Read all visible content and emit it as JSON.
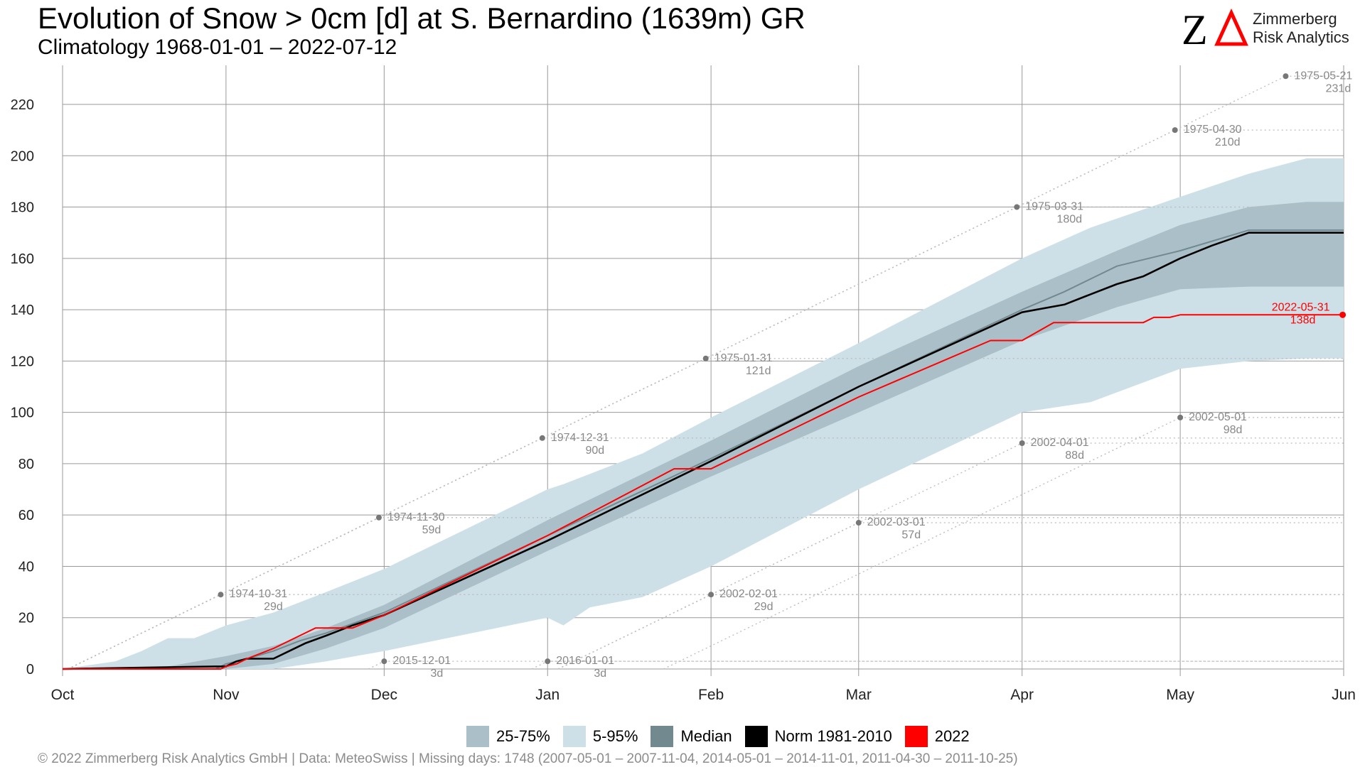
{
  "header": {
    "title": "Evolution of Snow > 0cm [d] at S. Bernardino (1639m) GR",
    "subtitle": "Climatology 1968-01-01 – 2022-07-12"
  },
  "logo": {
    "mark": "ZΔ",
    "line1": "Zimmerberg",
    "line2": "Risk Analytics"
  },
  "footer": {
    "text": "©  2022 Zimmerberg Risk Analytics GmbH | Data: MeteoSwiss | Missing days: 1748 (2007-05-01 – 2007-11-04, 2014-05-01 – 2014-11-01, 2011-04-30 – 2011-10-25)"
  },
  "legend": [
    {
      "label": "25-75%",
      "color": "#abbfc8"
    },
    {
      "label": "5-95%",
      "color": "#cde0e8"
    },
    {
      "label": "Median",
      "color": "#728990"
    },
    {
      "label": "Norm 1981-2010",
      "color": "#000000"
    },
    {
      "label": "2022",
      "color": "#ff0000"
    }
  ],
  "colors": {
    "band_5_95": "#cde0e8",
    "band_25_75": "#abbfc8",
    "median": "#728990",
    "norm": "#000000",
    "year2022": "#ff0000",
    "grid": "#9a9a9a",
    "record_points": "#777777",
    "record_lines": "#bbbbbb"
  },
  "chart_data": {
    "type": "line",
    "title": "Evolution of Snow > 0cm [d] at S. Bernardino (1639m) GR",
    "subtitle": "Climatology 1968-01-01 – 2022-07-12",
    "xlabel": "",
    "ylabel": "",
    "x_unit": "days since Oct 1",
    "x_ticks": [
      {
        "label": "Oct",
        "day": 0
      },
      {
        "label": "Nov",
        "day": 31
      },
      {
        "label": "Dec",
        "day": 61
      },
      {
        "label": "Jan",
        "day": 92
      },
      {
        "label": "Feb",
        "day": 123
      },
      {
        "label": "Mar",
        "day": 151
      },
      {
        "label": "Apr",
        "day": 182
      },
      {
        "label": "May",
        "day": 212
      },
      {
        "label": "Jun",
        "day": 243
      }
    ],
    "ylim": [
      0,
      230
    ],
    "y_ticks": [
      0,
      20,
      40,
      60,
      80,
      100,
      120,
      140,
      160,
      180,
      200,
      220
    ],
    "grid": true,
    "legend_position": "bottom",
    "bands": [
      {
        "name": "5-95%",
        "x": [
          0,
          10,
          15,
          20,
          25,
          31,
          40,
          50,
          61,
          92,
          95,
          100,
          110,
          123,
          151,
          182,
          195,
          212,
          225,
          236,
          243
        ],
        "upper": [
          0,
          3,
          7,
          12,
          12,
          17,
          22,
          30,
          39,
          70,
          72,
          76,
          84,
          98,
          127,
          160,
          172,
          184,
          193,
          199,
          199
        ],
        "lower": [
          0,
          0,
          0,
          0,
          0,
          0,
          0,
          3,
          7,
          20,
          17,
          24,
          28,
          40,
          70,
          100,
          104,
          117,
          120,
          121,
          121
        ]
      },
      {
        "name": "25-75%",
        "x": [
          0,
          20,
          31,
          40,
          50,
          61,
          92,
          123,
          151,
          182,
          200,
          212,
          225,
          236,
          243
        ],
        "upper": [
          0,
          1,
          5,
          9,
          16,
          25,
          58,
          89,
          118,
          147,
          163,
          173,
          180,
          182,
          182
        ],
        "lower": [
          0,
          0,
          0,
          2,
          8,
          16,
          46,
          75,
          100,
          128,
          141,
          148,
          149,
          149,
          149
        ]
      }
    ],
    "series": [
      {
        "name": "Median",
        "x": [
          0,
          29,
          31,
          35,
          40,
          45,
          50,
          61,
          92,
          123,
          151,
          182,
          190,
          200,
          212,
          225,
          243
        ],
        "y": [
          0,
          0,
          2,
          4,
          7,
          11,
          14,
          22,
          52,
          82,
          110,
          140,
          147,
          157,
          163,
          171,
          171
        ]
      },
      {
        "name": "Norm 1981-2010",
        "x": [
          0,
          29,
          31,
          33,
          35,
          40,
          43,
          46,
          50,
          55,
          61,
          92,
          123,
          151,
          182,
          190,
          195,
          200,
          205,
          212,
          218,
          225,
          243
        ],
        "y": [
          0,
          1,
          1,
          3,
          4,
          4,
          7,
          10,
          13,
          17,
          21,
          50,
          81,
          110,
          139,
          142,
          146,
          150,
          153,
          160,
          165,
          170,
          170
        ]
      },
      {
        "name": "2022",
        "x": [
          0,
          30,
          31,
          33,
          35,
          40,
          48,
          55,
          61,
          92,
          116,
          123,
          151,
          176,
          182,
          188,
          195,
          205,
          207,
          210,
          212,
          243
        ],
        "y": [
          0,
          0,
          1,
          2,
          4,
          8,
          16,
          16,
          21,
          52,
          78,
          78,
          106,
          128,
          128,
          135,
          135,
          135,
          137,
          137,
          138,
          138
        ]
      }
    ],
    "records": [
      {
        "date": "1974-10-31",
        "label": "29d",
        "x": 30,
        "y": 29
      },
      {
        "date": "1974-11-30",
        "label": "59d",
        "x": 60,
        "y": 59
      },
      {
        "date": "1974-12-31",
        "label": "90d",
        "x": 91,
        "y": 90
      },
      {
        "date": "1975-01-31",
        "label": "121d",
        "x": 122,
        "y": 121
      },
      {
        "date": "1975-03-31",
        "label": "180d",
        "x": 181,
        "y": 180
      },
      {
        "date": "1975-04-30",
        "label": "210d",
        "x": 211,
        "y": 210
      },
      {
        "date": "1975-05-21",
        "label": "231d",
        "x": 232,
        "y": 231
      },
      {
        "date": "2015-12-01",
        "label": "3d",
        "x": 61,
        "y": 3
      },
      {
        "date": "2016-01-01",
        "label": "3d",
        "x": 92,
        "y": 3
      },
      {
        "date": "2002-02-01",
        "label": "29d",
        "x": 123,
        "y": 29
      },
      {
        "date": "2002-03-01",
        "label": "57d",
        "x": 151,
        "y": 57
      },
      {
        "date": "2002-04-01",
        "label": "88d",
        "x": 182,
        "y": 88
      },
      {
        "date": "2002-05-01",
        "label": "98d",
        "x": 212,
        "y": 98
      }
    ],
    "current": {
      "date": "2022-05-31",
      "label": "138d",
      "x": 242,
      "y": 138
    }
  }
}
